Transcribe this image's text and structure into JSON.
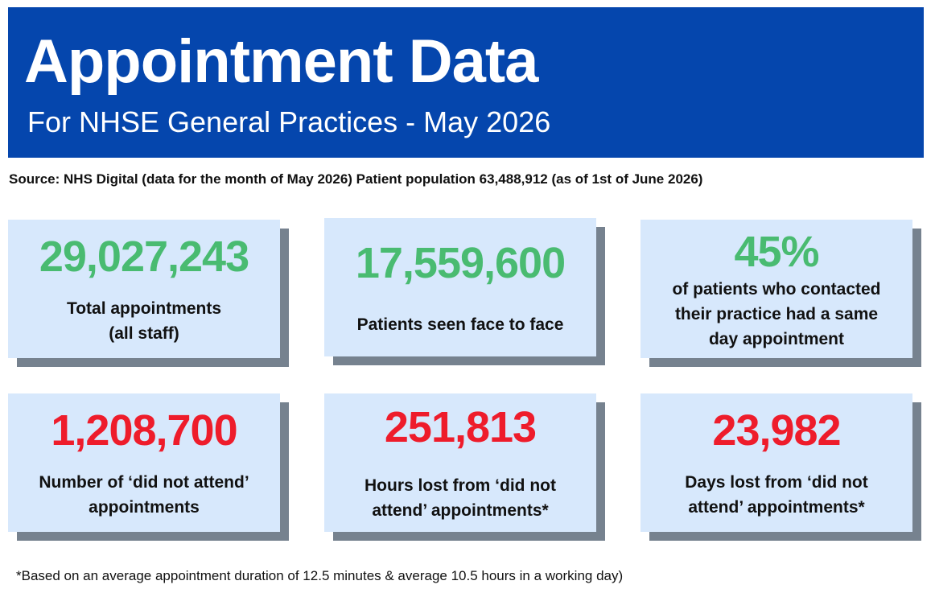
{
  "header": {
    "title": "Appointment Data",
    "subtitle": "For NHSE General Practices - May 2026"
  },
  "source_line": "Source: NHS Digital (data for the month of May 2026) Patient population 63,488,912 (as of 1st of June 2026)",
  "colors": {
    "banner": "#0546ad",
    "card_background": "#d7e8fc",
    "card_shadow": "#76828f",
    "positive_stat": "#49bb71",
    "negative_stat": "#ee1c2b"
  },
  "stats": [
    {
      "value": "29,027,243",
      "line1": "Total appointments",
      "line2": "(all staff)"
    },
    {
      "value": "17,559,600",
      "line1": "Patients seen face to face"
    },
    {
      "value": "45%",
      "line1": "of patients who contacted",
      "line2": "their practice had a same",
      "line3": "day appointment"
    },
    {
      "value": "1,208,700",
      "line1": "Number of ‘did not attend’",
      "line2": "appointments"
    },
    {
      "value": "251,813",
      "line1": "Hours lost from ‘did not",
      "line2": "attend’ appointments*"
    },
    {
      "value": "23,982",
      "line1": "Days lost from ‘did not",
      "line2": "attend’ appointments*"
    }
  ],
  "footnote": "*Based on an average appointment duration of 12.5 minutes & average 10.5 hours in a working day)"
}
